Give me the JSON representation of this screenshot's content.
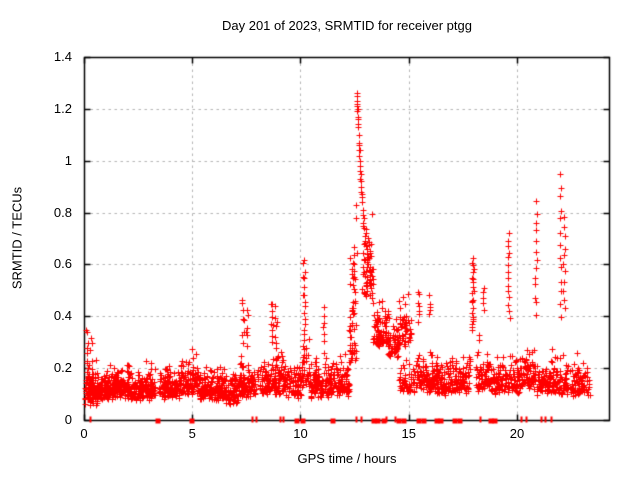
{
  "chart_data": {
    "type": "scatter",
    "title": "Day 201 of 2023, SRMTID for receiver ptgg",
    "xlabel": "GPS time / hours",
    "ylabel": "SRMTID / TECUs",
    "xlim": [
      0,
      24.25
    ],
    "ylim": [
      0,
      1.4
    ],
    "xticks": {
      "values": [
        0,
        5,
        10,
        15,
        20
      ],
      "labels": [
        "0",
        "5",
        "10",
        "15",
        "20"
      ]
    },
    "yticks": {
      "values": [
        0,
        0.2,
        0.4,
        0.6,
        0.8,
        1.0,
        1.2,
        1.4
      ],
      "labels": [
        "0",
        "0.2",
        "0.4",
        "0.6",
        "0.8",
        "1",
        "1.2",
        "1.4"
      ]
    },
    "grid": true,
    "legend": "none",
    "marker": "plus",
    "marker_color": "#ff0000",
    "grid_color": "#b5b5b5",
    "border_color": "#000000",
    "max_value": 1.26,
    "max_value_time": 12.6,
    "baseline_segments": [
      [
        0.03,
        0.6,
        110,
        0.085,
        0.05,
        0.36
      ],
      [
        0.6,
        1.35,
        115,
        0.105,
        0.048,
        0.31
      ],
      [
        1.35,
        2.25,
        130,
        0.11,
        0.048,
        0.3
      ],
      [
        2.25,
        3.3,
        135,
        0.1,
        0.05,
        0.33
      ],
      [
        3.45,
        4.45,
        120,
        0.11,
        0.05,
        0.31
      ],
      [
        4.45,
        5.25,
        100,
        0.12,
        0.055,
        0.36
      ],
      [
        5.25,
        6.2,
        115,
        0.1,
        0.048,
        0.28
      ],
      [
        6.2,
        7.15,
        110,
        0.09,
        0.05,
        0.3
      ],
      [
        7.15,
        7.95,
        90,
        0.11,
        0.062,
        0.45
      ],
      [
        8.0,
        9.3,
        140,
        0.12,
        0.065,
        0.44
      ],
      [
        9.3,
        10.05,
        65,
        0.105,
        0.055,
        0.33
      ],
      [
        10.05,
        10.4,
        30,
        0.15,
        0.07,
        0.42
      ],
      [
        10.4,
        11.25,
        95,
        0.11,
        0.058,
        0.37
      ],
      [
        11.25,
        12.25,
        110,
        0.12,
        0.058,
        0.36
      ],
      [
        12.25,
        12.6,
        45,
        0.24,
        0.16,
        0.68
      ],
      [
        12.85,
        13.35,
        50,
        0.5,
        0.13,
        0.93
      ],
      [
        13.35,
        14.05,
        85,
        0.3,
        0.07,
        0.52
      ],
      [
        14.05,
        14.55,
        60,
        0.27,
        0.06,
        0.46
      ],
      [
        14.55,
        15.25,
        50,
        0.13,
        0.05,
        0.26
      ],
      [
        14.55,
        15.15,
        45,
        0.3,
        0.08,
        0.55
      ],
      [
        15.25,
        16.35,
        130,
        0.13,
        0.055,
        0.4
      ],
      [
        16.35,
        17.35,
        110,
        0.12,
        0.055,
        0.34
      ],
      [
        17.35,
        17.85,
        55,
        0.13,
        0.062,
        0.4
      ],
      [
        18.1,
        18.85,
        75,
        0.135,
        0.062,
        0.42
      ],
      [
        18.85,
        19.55,
        65,
        0.125,
        0.06,
        0.38
      ],
      [
        19.55,
        20.35,
        75,
        0.13,
        0.062,
        0.4
      ],
      [
        20.35,
        20.85,
        55,
        0.145,
        0.07,
        0.44
      ],
      [
        20.9,
        21.65,
        70,
        0.125,
        0.055,
        0.38
      ],
      [
        21.65,
        23.35,
        150,
        0.115,
        0.055,
        0.37
      ]
    ],
    "streaks": [
      [
        0.15,
        9,
        0.17,
        0.35
      ],
      [
        0.32,
        7,
        0.14,
        0.32
      ],
      [
        7.35,
        8,
        0.31,
        0.46
      ],
      [
        7.52,
        6,
        0.29,
        0.42
      ],
      [
        8.68,
        9,
        0.3,
        0.46
      ],
      [
        8.87,
        7,
        0.27,
        0.43
      ],
      [
        10.15,
        20,
        0.22,
        0.62
      ],
      [
        11.07,
        7,
        0.27,
        0.44
      ],
      [
        12.47,
        9,
        0.44,
        0.66
      ],
      [
        15.45,
        7,
        0.39,
        0.5
      ],
      [
        15.95,
        5,
        0.4,
        0.47
      ],
      [
        17.95,
        22,
        0.34,
        0.62
      ],
      [
        18.45,
        5,
        0.42,
        0.51
      ],
      [
        19.62,
        14,
        0.4,
        0.72
      ],
      [
        20.88,
        13,
        0.41,
        0.84
      ],
      [
        22.02,
        13,
        0.4,
        0.95
      ],
      [
        22.18,
        11,
        0.42,
        0.78
      ]
    ],
    "peak_points": [
      [
        12.56,
        0.78
      ],
      [
        12.58,
        0.83
      ],
      [
        12.59,
        1.21
      ],
      [
        12.6,
        1.26
      ],
      [
        12.61,
        1.22
      ],
      [
        12.62,
        1.19
      ],
      [
        12.62,
        1.25
      ],
      [
        12.63,
        1.23
      ],
      [
        12.64,
        1.17
      ],
      [
        12.65,
        1.2
      ],
      [
        12.65,
        1.13
      ],
      [
        12.66,
        1.16
      ],
      [
        12.67,
        1.14
      ],
      [
        12.68,
        1.1
      ],
      [
        12.69,
        1.07
      ],
      [
        12.7,
        1.04
      ],
      [
        12.71,
        1.06
      ],
      [
        12.72,
        1.02
      ],
      [
        12.73,
        1.0
      ],
      [
        12.74,
        1.04
      ],
      [
        12.75,
        0.98
      ],
      [
        12.76,
        0.96
      ],
      [
        12.77,
        0.93
      ],
      [
        12.78,
        0.95
      ],
      [
        12.79,
        0.9
      ],
      [
        12.8,
        0.92
      ],
      [
        12.81,
        0.88
      ],
      [
        12.82,
        0.86
      ],
      [
        12.84,
        0.84
      ],
      [
        12.85,
        0.87
      ],
      [
        12.87,
        0.81
      ],
      [
        12.89,
        0.79
      ],
      [
        12.91,
        0.76
      ],
      [
        12.93,
        0.78
      ],
      [
        12.95,
        0.74
      ],
      [
        12.97,
        0.71
      ],
      [
        12.99,
        0.69
      ],
      [
        13.01,
        0.72
      ],
      [
        13.03,
        0.67
      ],
      [
        13.05,
        0.64
      ],
      [
        13.07,
        0.66
      ],
      [
        13.09,
        0.62
      ],
      [
        13.11,
        0.6
      ],
      [
        13.13,
        0.63
      ],
      [
        13.16,
        0.58
      ],
      [
        13.19,
        0.56
      ],
      [
        13.21,
        0.54
      ],
      [
        13.24,
        0.51
      ],
      [
        13.26,
        0.53
      ],
      [
        13.29,
        0.49
      ],
      [
        13.31,
        0.47
      ],
      [
        13.34,
        0.45
      ]
    ],
    "zero_markers": {
      "squares": [
        3.35,
        4.95,
        9.8,
        10.05,
        11.45,
        13.35,
        13.55,
        13.8,
        14.5,
        14.75,
        15.45,
        15.65,
        16.25,
        16.45,
        17.1,
        17.3,
        18.75,
        18.95
      ],
      "ticks": [
        0.28,
        7.75,
        7.95,
        9.05,
        9.2,
        12.55,
        12.8,
        13.95,
        14.35,
        18.3,
        20.2,
        20.4,
        21.1,
        21.3,
        21.55
      ]
    }
  }
}
